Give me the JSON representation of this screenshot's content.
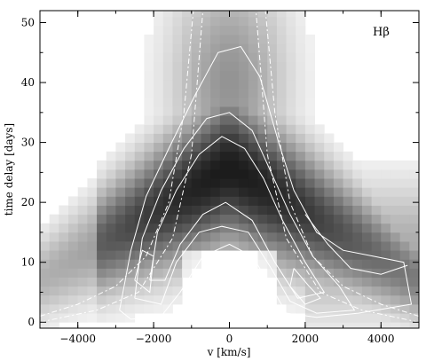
{
  "chart_data": {
    "type": "heatmap",
    "line_label": "Hβ",
    "xlabel": "v [km/s]",
    "ylabel": "time delay [days]",
    "xlim": [
      -5000,
      5000
    ],
    "ylim": [
      -1,
      52
    ],
    "x_ticks": [
      -4000,
      -2000,
      0,
      2000,
      4000
    ],
    "x_tick_labels": [
      "−4000",
      "−2000",
      "0",
      "2000",
      "4000"
    ],
    "y_ticks": [
      0,
      10,
      20,
      30,
      40,
      50
    ],
    "y_tick_labels": [
      "0",
      "10",
      "20",
      "30",
      "40",
      "50"
    ],
    "grid": false,
    "colormap": "greyscale (white = low, black = high)",
    "contour_color": "#ffffff"
  }
}
